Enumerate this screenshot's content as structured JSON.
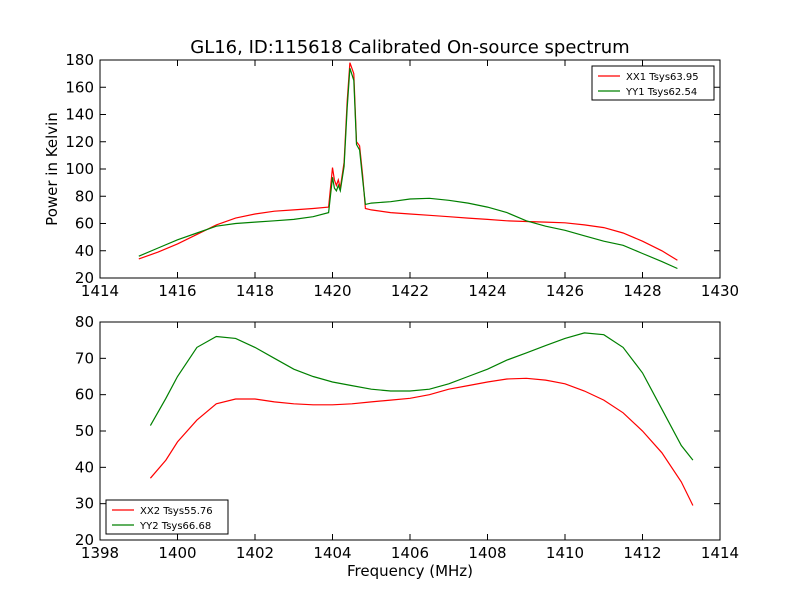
{
  "chart_data": [
    {
      "type": "line",
      "title": "GL16, ID:115618 Calibrated On-source spectrum",
      "xlabel": "",
      "ylabel": "Power in Kelvin",
      "xlim": [
        1414,
        1430
      ],
      "ylim": [
        20,
        180
      ],
      "xticks": [
        1414,
        1416,
        1418,
        1420,
        1422,
        1424,
        1426,
        1428,
        1430
      ],
      "yticks": [
        20,
        40,
        60,
        80,
        100,
        120,
        140,
        160,
        180
      ],
      "grid": false,
      "legend_position": "top-right",
      "series": [
        {
          "name": "XX1 Tsys63.95",
          "color": "#ff0000",
          "points": [
            [
              1415.0,
              34
            ],
            [
              1415.5,
              39
            ],
            [
              1416.0,
              45
            ],
            [
              1416.5,
              52
            ],
            [
              1417.0,
              59
            ],
            [
              1417.5,
              64
            ],
            [
              1418.0,
              67
            ],
            [
              1418.5,
              69
            ],
            [
              1419.0,
              70
            ],
            [
              1419.5,
              71
            ],
            [
              1419.9,
              72
            ],
            [
              1420.0,
              101
            ],
            [
              1420.05,
              92
            ],
            [
              1420.1,
              88
            ],
            [
              1420.15,
              92
            ],
            [
              1420.2,
              86
            ],
            [
              1420.3,
              105
            ],
            [
              1420.38,
              150
            ],
            [
              1420.45,
              178
            ],
            [
              1420.55,
              170
            ],
            [
              1420.62,
              120
            ],
            [
              1420.7,
              117
            ],
            [
              1420.78,
              95
            ],
            [
              1420.85,
              71
            ],
            [
              1421.0,
              70
            ],
            [
              1421.5,
              68
            ],
            [
              1422.0,
              67
            ],
            [
              1422.5,
              66
            ],
            [
              1423.0,
              65
            ],
            [
              1423.5,
              64
            ],
            [
              1424.0,
              63
            ],
            [
              1424.5,
              62
            ],
            [
              1425.0,
              61.5
            ],
            [
              1425.5,
              61
            ],
            [
              1426.0,
              60.5
            ],
            [
              1426.5,
              59
            ],
            [
              1427.0,
              57
            ],
            [
              1427.5,
              53
            ],
            [
              1428.0,
              47
            ],
            [
              1428.5,
              40
            ],
            [
              1428.9,
              33
            ]
          ]
        },
        {
          "name": "YY1 Tsys62.54",
          "color": "#008000",
          "points": [
            [
              1415.0,
              36
            ],
            [
              1415.5,
              42
            ],
            [
              1416.0,
              48
            ],
            [
              1416.5,
              53
            ],
            [
              1417.0,
              58
            ],
            [
              1417.5,
              60
            ],
            [
              1418.0,
              61
            ],
            [
              1418.5,
              62
            ],
            [
              1419.0,
              63
            ],
            [
              1419.5,
              65
            ],
            [
              1419.9,
              68
            ],
            [
              1420.0,
              94
            ],
            [
              1420.05,
              86
            ],
            [
              1420.1,
              84
            ],
            [
              1420.15,
              88
            ],
            [
              1420.2,
              84
            ],
            [
              1420.3,
              102
            ],
            [
              1420.38,
              145
            ],
            [
              1420.45,
              174
            ],
            [
              1420.55,
              165
            ],
            [
              1420.62,
              118
            ],
            [
              1420.7,
              114
            ],
            [
              1420.78,
              92
            ],
            [
              1420.85,
              74
            ],
            [
              1421.0,
              75
            ],
            [
              1421.5,
              76
            ],
            [
              1422.0,
              78
            ],
            [
              1422.5,
              78.5
            ],
            [
              1423.0,
              77
            ],
            [
              1423.5,
              75
            ],
            [
              1424.0,
              72
            ],
            [
              1424.5,
              68
            ],
            [
              1425.0,
              62
            ],
            [
              1425.5,
              58
            ],
            [
              1426.0,
              55
            ],
            [
              1426.5,
              51
            ],
            [
              1427.0,
              47
            ],
            [
              1427.5,
              44
            ],
            [
              1428.0,
              38
            ],
            [
              1428.5,
              32
            ],
            [
              1428.9,
              27
            ]
          ]
        }
      ]
    },
    {
      "type": "line",
      "title": "",
      "xlabel": "Frequency (MHz)",
      "ylabel": "",
      "xlim": [
        1398,
        1414
      ],
      "ylim": [
        20,
        80
      ],
      "xticks": [
        1398,
        1400,
        1402,
        1404,
        1406,
        1408,
        1410,
        1412,
        1414
      ],
      "yticks": [
        20,
        30,
        40,
        50,
        60,
        70,
        80
      ],
      "grid": false,
      "legend_position": "bottom-left",
      "series": [
        {
          "name": "XX2 Tsys55.76",
          "color": "#ff0000",
          "points": [
            [
              1399.3,
              37
            ],
            [
              1399.7,
              42
            ],
            [
              1400.0,
              47
            ],
            [
              1400.5,
              53
            ],
            [
              1401.0,
              57.5
            ],
            [
              1401.5,
              58.8
            ],
            [
              1402.0,
              58.8
            ],
            [
              1402.5,
              58
            ],
            [
              1403.0,
              57.5
            ],
            [
              1403.5,
              57.2
            ],
            [
              1404.0,
              57.2
            ],
            [
              1404.5,
              57.5
            ],
            [
              1405.0,
              58
            ],
            [
              1405.5,
              58.5
            ],
            [
              1406.0,
              59
            ],
            [
              1406.5,
              60
            ],
            [
              1407.0,
              61.5
            ],
            [
              1407.5,
              62.5
            ],
            [
              1408.0,
              63.5
            ],
            [
              1408.5,
              64.3
            ],
            [
              1409.0,
              64.5
            ],
            [
              1409.5,
              64
            ],
            [
              1410.0,
              63
            ],
            [
              1410.5,
              61
            ],
            [
              1411.0,
              58.5
            ],
            [
              1411.5,
              55
            ],
            [
              1412.0,
              50
            ],
            [
              1412.5,
              44
            ],
            [
              1413.0,
              36
            ],
            [
              1413.3,
              29.5
            ]
          ]
        },
        {
          "name": "YY2 Tsys66.68",
          "color": "#008000",
          "points": [
            [
              1399.3,
              51.5
            ],
            [
              1399.7,
              59
            ],
            [
              1400.0,
              65
            ],
            [
              1400.5,
              73
            ],
            [
              1401.0,
              76
            ],
            [
              1401.5,
              75.5
            ],
            [
              1402.0,
              73
            ],
            [
              1402.5,
              70
            ],
            [
              1403.0,
              67
            ],
            [
              1403.5,
              65
            ],
            [
              1404.0,
              63.5
            ],
            [
              1404.5,
              62.5
            ],
            [
              1405.0,
              61.5
            ],
            [
              1405.5,
              61
            ],
            [
              1406.0,
              61
            ],
            [
              1406.5,
              61.5
            ],
            [
              1407.0,
              63
            ],
            [
              1407.5,
              65
            ],
            [
              1408.0,
              67
            ],
            [
              1408.5,
              69.5
            ],
            [
              1409.0,
              71.5
            ],
            [
              1409.5,
              73.5
            ],
            [
              1410.0,
              75.5
            ],
            [
              1410.5,
              77
            ],
            [
              1411.0,
              76.5
            ],
            [
              1411.5,
              73
            ],
            [
              1412.0,
              66
            ],
            [
              1412.5,
              56
            ],
            [
              1413.0,
              46
            ],
            [
              1413.3,
              42
            ]
          ]
        }
      ]
    }
  ]
}
